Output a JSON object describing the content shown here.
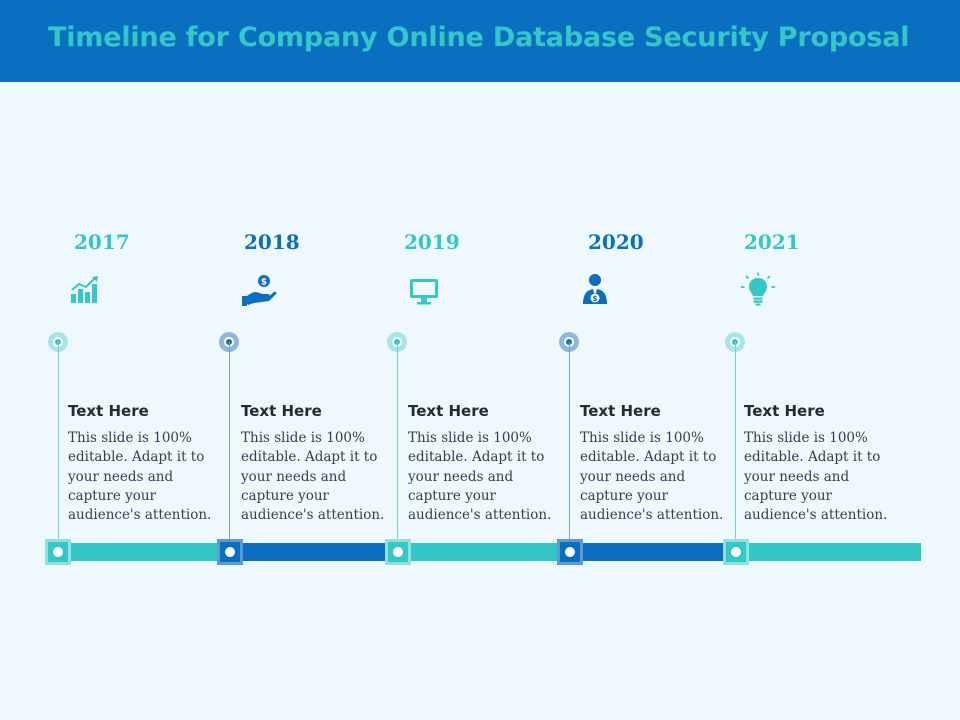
{
  "title": "Timeline for Company Online Database Security Proposal",
  "colors": {
    "header_bg": "#0a6fc0",
    "title": "#33c8c6",
    "teal": "#33c8c6",
    "blue": "#0a6fc0",
    "background": "#eef8fd"
  },
  "timeline": [
    {
      "year": "2017",
      "icon": "growth-chart-icon",
      "heading": "Text Here",
      "body": "This slide is 100% editable. Adapt it to your needs and capture your audience's attention."
    },
    {
      "year": "2018",
      "icon": "hand-with-coin-icon",
      "heading": "Text Here",
      "body": "This slide is 100% editable. Adapt it to your needs and capture your audience's attention."
    },
    {
      "year": "2019",
      "icon": "monitor-icon",
      "heading": "Text Here",
      "body": "This slide is 100% editable. Adapt it to your needs and capture your audience's attention."
    },
    {
      "year": "2020",
      "icon": "businessman-icon",
      "heading": "Text Here",
      "body": "This slide is 100% editable. Adapt it to your needs and capture your audience's attention."
    },
    {
      "year": "2021",
      "icon": "lightbulb-icon",
      "heading": "Text Here",
      "body": "This slide is 100% editable. Adapt it to your needs and capture your audience's attention."
    }
  ]
}
